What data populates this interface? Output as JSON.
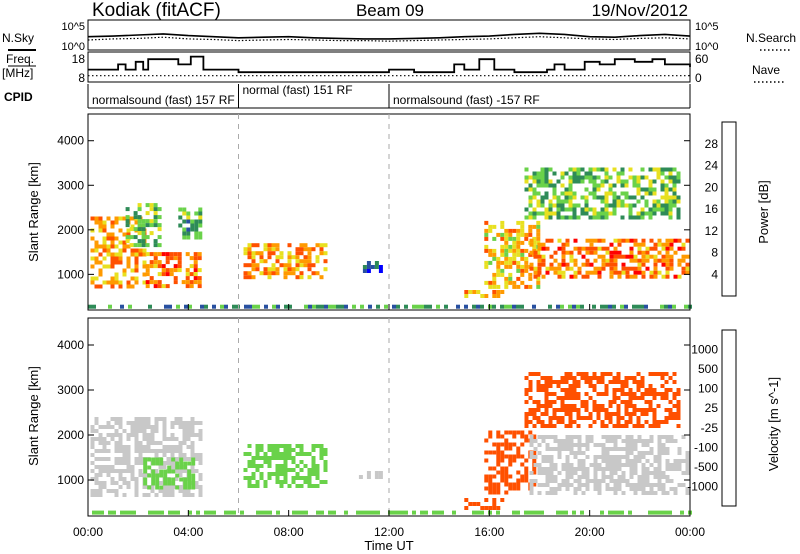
{
  "chart_data": [
    {
      "type": "line",
      "panel": "summary-noise",
      "header": {
        "station": "Kodiak (fitACF)",
        "beam": "Beam 09",
        "date": "19/Nov/2012"
      },
      "ylabel": "N.Sky",
      "right_label": "N.Search",
      "left_ticks": [
        "10^5",
        "10^0"
      ],
      "right_ticks": [
        "10^5",
        "10^0"
      ],
      "series": [
        {
          "name": "N.Sky",
          "style": "solid",
          "values": [
            2.2,
            2.3,
            2.5,
            2.7,
            2.4,
            2.2,
            2.0,
            2.1,
            2.2,
            2.0,
            1.9,
            1.8,
            1.8,
            1.9,
            2.0,
            2.2,
            2.3,
            2.6,
            2.8,
            2.6,
            2.2,
            2.1,
            2.4,
            2.6,
            2.3
          ]
        },
        {
          "name": "N.Search",
          "style": "dotted",
          "values": [
            1.6,
            1.8,
            1.9,
            2.1,
            1.8,
            1.7,
            1.5,
            1.6,
            1.7,
            1.6,
            1.5,
            1.5,
            1.4,
            1.5,
            1.6,
            1.7,
            1.8,
            2.0,
            2.2,
            2.0,
            1.8,
            1.7,
            1.9,
            2.0,
            1.8
          ]
        }
      ]
    },
    {
      "type": "line",
      "panel": "summary-frequency",
      "ylabel_top": "Freq.",
      "ylabel_bottom": "[MHz]",
      "right_label": "Nave",
      "left_ticks": [
        "18",
        "8"
      ],
      "right_ticks": [
        "60",
        "0"
      ],
      "series": [
        {
          "name": "Freq.",
          "style": "solid",
          "x_hours": [
            0,
            1.2,
            1.5,
            1.9,
            2.2,
            2.4,
            3.6,
            4.1,
            4.6,
            6.0,
            9.0,
            12.0,
            13.0,
            14.6,
            15.0,
            15.6,
            16.2,
            17.0,
            18.3,
            18.6,
            19.0,
            19.8,
            20.4,
            21.0,
            21.8,
            22.5,
            23.0,
            24.0
          ],
          "values": [
            12,
            14,
            12,
            15,
            12,
            16,
            14,
            17,
            12,
            11,
            11,
            12,
            11,
            14,
            12,
            16,
            12,
            11,
            12,
            14,
            12,
            15,
            14,
            16,
            15,
            16,
            14,
            13
          ]
        },
        {
          "name": "Nave",
          "style": "dotted",
          "x_hours": [
            0,
            24
          ],
          "values": [
            10,
            10
          ]
        }
      ]
    },
    {
      "type": "table",
      "panel": "cpid",
      "label": "CPID",
      "segments": [
        {
          "text": "normalsound (fast) 157 RF",
          "start": 0,
          "end": 6
        },
        {
          "text": "normal (fast) 151 RF",
          "start": 6,
          "end": 12
        },
        {
          "text": "normalsound (fast) -157 RF",
          "start": 12,
          "end": 24
        }
      ]
    },
    {
      "type": "heatmap",
      "panel": "power",
      "ylabel": "Slant Range [km]",
      "yticks": [
        1000,
        2000,
        3000,
        4000
      ],
      "ylim": [
        200,
        4600
      ],
      "xlim_hours": [
        0,
        24
      ],
      "colorbar": {
        "label": "Power [dB]",
        "ticks": [
          "28",
          "24",
          "20",
          "16",
          "12",
          "8",
          "4"
        ],
        "colors": [
          "#0000ff",
          "#2850a0",
          "#2e8b57",
          "#6ad24a",
          "#e8e020",
          "#ff9a00",
          "#ff5000",
          "#ff0000"
        ]
      },
      "regions": [
        {
          "t0": 0.1,
          "t1": 2.3,
          "r0": 650,
          "r1": 2300,
          "level": 22
        },
        {
          "t0": 2.3,
          "t1": 4.5,
          "r0": 700,
          "r1": 1500,
          "level": 24
        },
        {
          "t0": 1.5,
          "t1": 3.0,
          "r0": 1600,
          "r1": 2600,
          "level": 14
        },
        {
          "t0": 3.6,
          "t1": 4.6,
          "r0": 1800,
          "r1": 2500,
          "level": 12
        },
        {
          "t0": 6.2,
          "t1": 9.6,
          "r0": 850,
          "r1": 1700,
          "level": 22
        },
        {
          "t0": 10.8,
          "t1": 11.8,
          "r0": 1000,
          "r1": 1300,
          "level": 6
        },
        {
          "t0": 15.0,
          "t1": 16.7,
          "r0": 450,
          "r1": 650,
          "level": 22
        },
        {
          "t0": 15.8,
          "t1": 18.0,
          "r0": 700,
          "r1": 2200,
          "level": 20
        },
        {
          "t0": 17.6,
          "t1": 24.0,
          "r0": 900,
          "r1": 1800,
          "level": 24
        },
        {
          "t0": 17.4,
          "t1": 23.6,
          "r0": 2200,
          "r1": 3400,
          "level": 14
        },
        {
          "t0": 0.0,
          "t1": 24.0,
          "r0": 200,
          "r1": 320,
          "level": 10
        }
      ]
    },
    {
      "type": "heatmap",
      "panel": "velocity",
      "ylabel": "Slant Range [km]",
      "xlabel": "Time UT",
      "yticks": [
        1000,
        2000,
        3000,
        4000
      ],
      "ylim": [
        200,
        4600
      ],
      "xlim_hours": [
        0,
        24
      ],
      "xticks": [
        "00:00",
        "04:00",
        "08:00",
        "12:00",
        "16:00",
        "20:00",
        "00:00"
      ],
      "colorbar": {
        "label": "Velocity [m s^-1]",
        "ticks": [
          "1000",
          "500",
          "100",
          "25",
          "-25",
          "-100",
          "-500",
          "-1000"
        ],
        "colors": [
          "#ff0000",
          "#ff5000",
          "#ff9a00",
          "#c8c8c8",
          "#6ad24a",
          "#2e8b57",
          "#2850a0",
          "#0000ff"
        ]
      },
      "regions": [
        {
          "t0": 0.1,
          "t1": 4.6,
          "r0": 650,
          "r1": 2400,
          "level": 0
        },
        {
          "t0": 2.2,
          "t1": 4.3,
          "r0": 800,
          "r1": 1500,
          "level": 60
        },
        {
          "t0": 6.2,
          "t1": 9.6,
          "r0": 800,
          "r1": 1800,
          "level": 80
        },
        {
          "t0": 10.8,
          "t1": 11.8,
          "r0": 1000,
          "r1": 1200,
          "level": 0
        },
        {
          "t0": 15.0,
          "t1": 16.6,
          "r0": 300,
          "r1": 600,
          "level": -150
        },
        {
          "t0": 15.8,
          "t1": 17.8,
          "r0": 650,
          "r1": 2100,
          "level": -150
        },
        {
          "t0": 17.6,
          "t1": 24.0,
          "r0": 700,
          "r1": 2000,
          "level": 0
        },
        {
          "t0": 17.4,
          "t1": 23.6,
          "r0": 2200,
          "r1": 3400,
          "level": -200
        },
        {
          "t0": 0.0,
          "t1": 24.0,
          "r0": 200,
          "r1": 320,
          "level": 40
        }
      ]
    }
  ]
}
